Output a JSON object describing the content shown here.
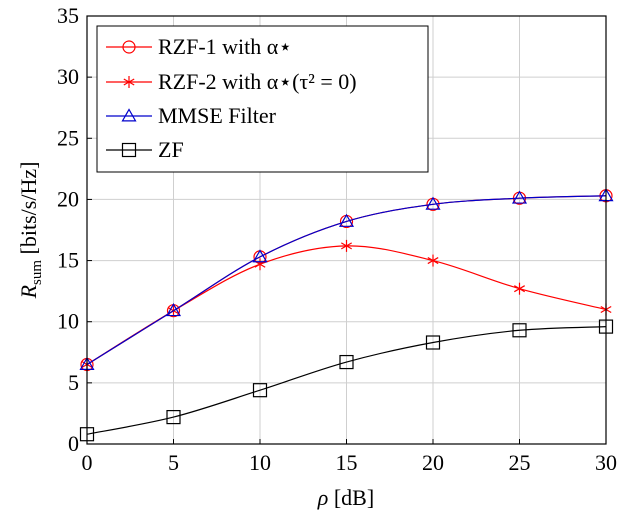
{
  "chart_data": {
    "type": "line",
    "x": [
      0,
      5,
      10,
      15,
      20,
      25,
      30
    ],
    "xlabel": "ρ [dB]",
    "ylabel": "R_sum [bits/s/Hz]",
    "xlim": [
      0,
      30
    ],
    "ylim": [
      0,
      35
    ],
    "xticks": [
      0,
      5,
      10,
      15,
      20,
      25,
      30
    ],
    "yticks": [
      0,
      5,
      10,
      15,
      20,
      25,
      30,
      35
    ],
    "grid": true,
    "legend_position": "top-left",
    "series": [
      {
        "name": "RZF-1 with α⋆",
        "color": "#ff0000",
        "marker": "circle",
        "values": [
          6.5,
          10.9,
          15.3,
          18.2,
          19.6,
          20.1,
          20.3
        ]
      },
      {
        "name": "RZF-2 with α⋆(τ² = 0)",
        "color": "#ff0000",
        "marker": "star",
        "values": [
          6.5,
          10.9,
          14.7,
          16.2,
          15.0,
          12.7,
          11.0
        ]
      },
      {
        "name": "MMSE Filter",
        "color": "#0000cc",
        "marker": "triangle",
        "values": [
          6.5,
          10.9,
          15.3,
          18.2,
          19.6,
          20.1,
          20.3
        ]
      },
      {
        "name": "ZF",
        "color": "#000000",
        "marker": "square",
        "values": [
          0.8,
          2.2,
          4.4,
          6.7,
          8.3,
          9.3,
          9.6
        ]
      }
    ]
  }
}
